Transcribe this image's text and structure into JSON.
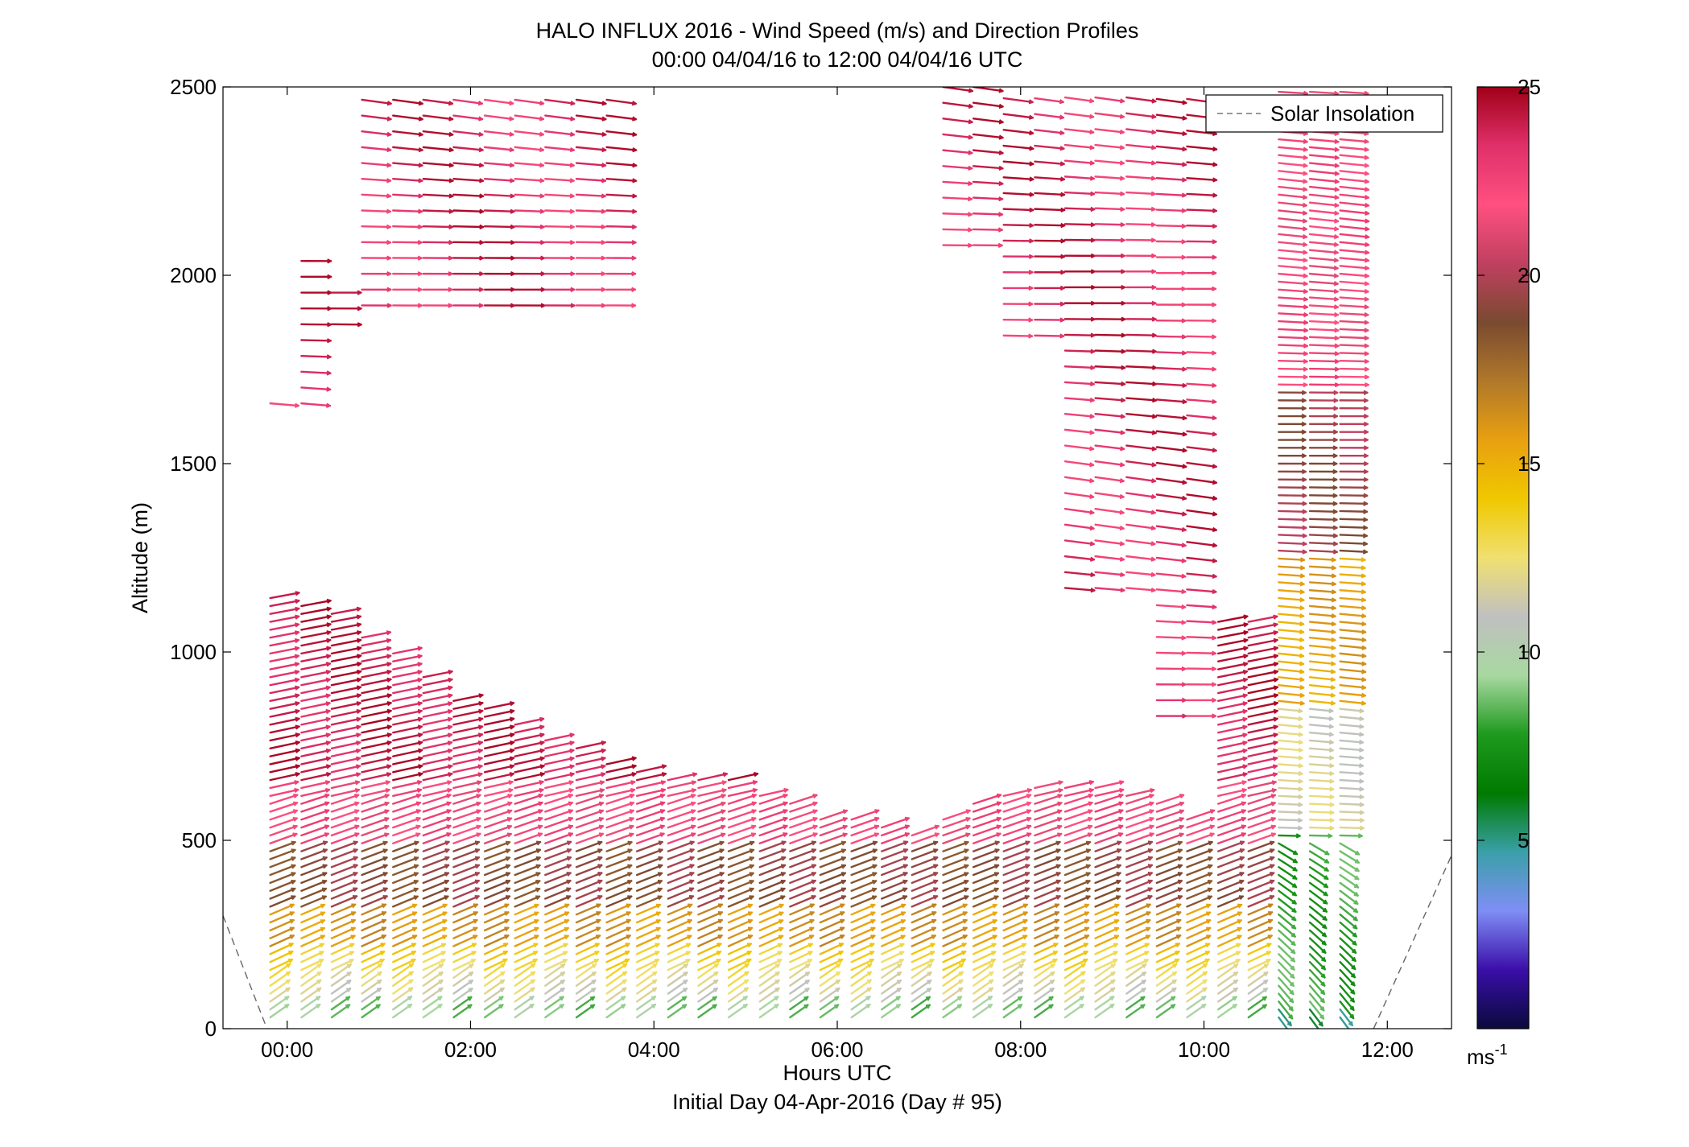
{
  "chart_data": {
    "type": "quiver",
    "title": "HALO INFLUX 2016 - Wind Speed (m/s) and Direction Profiles",
    "subtitle": "00:00 04/04/16 to 12:00 04/04/16  UTC",
    "xlabel": "Hours UTC",
    "xlabel2": "Initial Day 04-Apr-2016 (Day # 95)",
    "ylabel": "Altitude (m)",
    "xlim": [
      -0.7,
      12.7
    ],
    "ylim": [
      0,
      2500
    ],
    "x_ticks": [
      0,
      2,
      4,
      6,
      8,
      10,
      12
    ],
    "x_tick_labels": [
      "00:00",
      "02:00",
      "04:00",
      "06:00",
      "08:00",
      "10:00",
      "12:00"
    ],
    "y_ticks": [
      0,
      500,
      1000,
      1500,
      2000,
      2500
    ],
    "y_tick_labels": [
      "0",
      "500",
      "1000",
      "1500",
      "2000",
      "2500"
    ],
    "legend": {
      "position": "top-right",
      "entries": [
        "Solar Insolation"
      ]
    },
    "colorbar": {
      "range": [
        0,
        25
      ],
      "ticks": [
        5,
        10,
        15,
        20,
        25
      ],
      "tick_labels": [
        "5",
        "10",
        "15",
        "20",
        "25"
      ],
      "unit_label": "ms",
      "unit_exponent": "-1",
      "colors": [
        "#0a0a3c",
        "#3a0ea8",
        "#7f8ef5",
        "#3aa0a8",
        "#007a00",
        "#1e9a1e",
        "#a8d8a0",
        "#c0c0c0",
        "#f0e070",
        "#f0c800",
        "#e8a010",
        "#b0782a",
        "#7a4a30",
        "#c04060",
        "#ff5080",
        "#e0306a",
        "#a00018"
      ]
    },
    "solar_insolation": {
      "left": [
        [
          -0.7,
          300
        ],
        [
          -0.22,
          0
        ]
      ],
      "right": [
        [
          11.85,
          0
        ],
        [
          12.7,
          460
        ]
      ]
    },
    "profile_times": [
      -0.22,
      0.12,
      0.45,
      0.78,
      1.12,
      1.45,
      1.78,
      2.12,
      2.45,
      2.78,
      3.12,
      3.45,
      3.78,
      4.12,
      4.45,
      4.78,
      5.12,
      5.45,
      5.78,
      6.12,
      6.45,
      6.78,
      7.12,
      7.45,
      7.78,
      8.12,
      8.45,
      8.78,
      9.12,
      9.45,
      9.78,
      10.12,
      10.45,
      10.78,
      11.12,
      11.45
    ],
    "boundary_layer_top": [
      1150,
      1130,
      1120,
      1050,
      1000,
      950,
      880,
      850,
      820,
      780,
      750,
      720,
      700,
      680,
      680,
      660,
      620,
      600,
      570,
      560,
      540,
      530,
      570,
      600,
      630,
      640,
      650,
      640,
      620,
      600,
      560,
      1090,
      1090,
      2500,
      2500,
      2500
    ],
    "upper_layers": [
      {
        "x_from": -0.22,
        "x_to": 0.12,
        "alt_from": 1660,
        "alt_to": 1670
      },
      {
        "x_from": 0.12,
        "x_to": 0.45,
        "alt_from": 1660,
        "alt_to": 2040
      },
      {
        "x_from": 0.45,
        "x_to": 0.78,
        "alt_from": 1870,
        "alt_to": 1960
      },
      {
        "x_from": 0.78,
        "x_to": 3.78,
        "alt_from": 1920,
        "alt_to": 2500
      },
      {
        "x_from": 7.12,
        "x_to": 7.78,
        "alt_from": 2080,
        "alt_to": 2500
      },
      {
        "x_from": 7.78,
        "x_to": 8.45,
        "alt_from": 1840,
        "alt_to": 2500
      },
      {
        "x_from": 8.45,
        "x_to": 9.45,
        "alt_from": 1170,
        "alt_to": 2500
      },
      {
        "x_from": 9.45,
        "x_to": 10.12,
        "alt_from": 830,
        "alt_to": 2500
      }
    ]
  }
}
